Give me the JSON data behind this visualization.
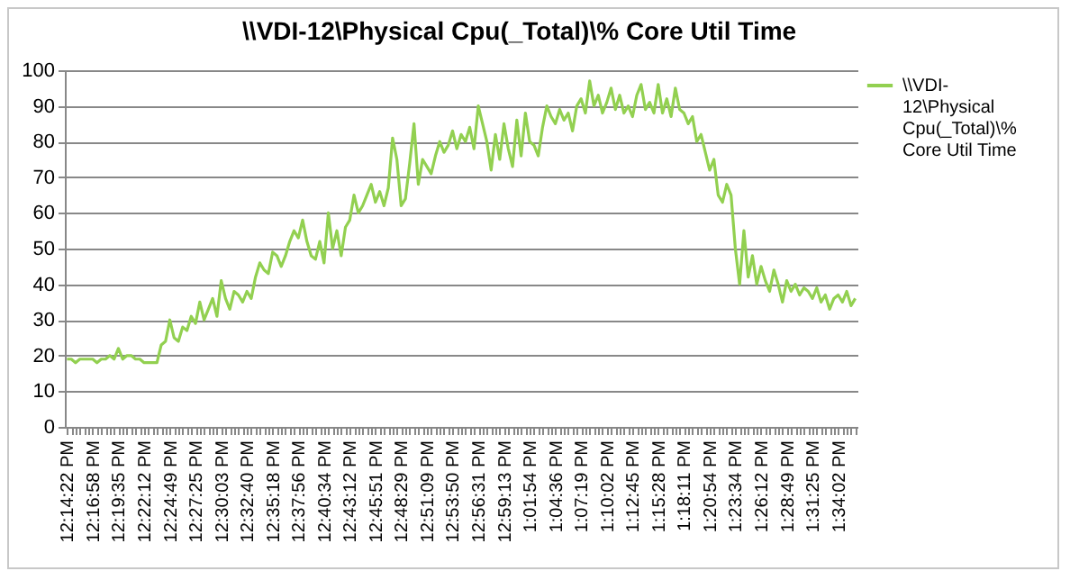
{
  "chart_data": {
    "type": "line",
    "title": "\\\\VDI-12\\Physical Cpu(_Total)\\% Core Util Time",
    "categories": [
      "12:14:22 PM",
      null,
      null,
      null,
      null,
      null,
      "12:16:58 PM",
      null,
      null,
      null,
      null,
      null,
      "12:19:35 PM",
      null,
      null,
      null,
      null,
      null,
      "12:22:12 PM",
      null,
      null,
      null,
      null,
      null,
      "12:24:49 PM",
      null,
      null,
      null,
      null,
      null,
      "12:27:25 PM",
      null,
      null,
      null,
      null,
      null,
      "12:30:03 PM",
      null,
      null,
      null,
      null,
      null,
      "12:32:40 PM",
      null,
      null,
      null,
      null,
      null,
      "12:35:18 PM",
      null,
      null,
      null,
      null,
      null,
      "12:37:56 PM",
      null,
      null,
      null,
      null,
      null,
      "12:40:34 PM",
      null,
      null,
      null,
      null,
      null,
      "12:43:12 PM",
      null,
      null,
      null,
      null,
      null,
      "12:45:51 PM",
      null,
      null,
      null,
      null,
      null,
      "12:48:29 PM",
      null,
      null,
      null,
      null,
      null,
      "12:51:09 PM",
      null,
      null,
      null,
      null,
      null,
      "12:53:50 PM",
      null,
      null,
      null,
      null,
      null,
      "12:56:31 PM",
      null,
      null,
      null,
      null,
      null,
      "12:59:13 PM",
      null,
      null,
      null,
      null,
      null,
      "1:01:54 PM",
      null,
      null,
      null,
      null,
      null,
      "1:04:36 PM",
      null,
      null,
      null,
      null,
      null,
      "1:07:19 PM",
      null,
      null,
      null,
      null,
      null,
      "1:10:02 PM",
      null,
      null,
      null,
      null,
      null,
      "1:12:45 PM",
      null,
      null,
      null,
      null,
      null,
      "1:15:28 PM",
      null,
      null,
      null,
      null,
      null,
      "1:18:11 PM",
      null,
      null,
      null,
      null,
      null,
      "1:20:54 PM",
      null,
      null,
      null,
      null,
      null,
      "1:23:34 PM",
      null,
      null,
      null,
      null,
      null,
      "1:26:12 PM",
      null,
      null,
      null,
      null,
      null,
      "1:28:49 PM",
      null,
      null,
      null,
      null,
      null,
      "1:31:25 PM",
      null,
      null,
      null,
      null,
      null,
      "1:34:02 PM",
      null,
      null,
      null,
      null
    ],
    "series": [
      {
        "name": "\\\\VDI-12\\Physical Cpu(_Total)\\% Core Util Time",
        "color": "#92d050",
        "values": [
          19,
          19,
          18,
          19,
          19,
          19,
          19,
          18,
          19,
          19,
          20,
          19,
          22,
          19,
          20,
          20,
          19,
          19,
          18,
          18,
          18,
          18,
          23,
          24,
          30,
          25,
          24,
          28,
          27,
          31,
          29,
          35,
          30,
          33,
          36,
          31,
          41,
          36,
          33,
          38,
          37,
          35,
          38,
          36,
          42,
          46,
          44,
          43,
          49,
          48,
          45,
          48,
          52,
          55,
          53,
          58,
          52,
          48,
          47,
          52,
          46,
          60,
          50,
          55,
          48,
          56,
          58,
          65,
          60,
          62,
          65,
          68,
          63,
          66,
          62,
          67,
          81,
          75,
          62,
          64,
          74,
          85,
          68,
          75,
          73,
          71,
          76,
          80,
          77,
          79,
          83,
          78,
          82,
          80,
          84,
          78,
          90,
          85,
          80,
          72,
          82,
          75,
          85,
          78,
          73,
          86,
          76,
          88,
          80,
          79,
          76,
          84,
          90,
          87,
          85,
          89,
          86,
          88,
          83,
          90,
          92,
          88,
          97,
          90,
          93,
          88,
          91,
          95,
          89,
          93,
          88,
          90,
          87,
          93,
          96,
          89,
          91,
          88,
          96,
          88,
          92,
          87,
          95,
          89,
          88,
          85,
          87,
          80,
          82,
          77,
          72,
          75,
          65,
          63,
          68,
          65,
          50,
          40,
          55,
          42,
          48,
          40,
          45,
          41,
          38,
          44,
          40,
          35,
          41,
          38,
          40,
          37,
          39,
          38,
          36,
          39,
          35,
          37,
          33,
          36,
          37,
          35,
          38,
          34,
          36
        ]
      }
    ],
    "ylim": [
      0,
      100
    ],
    "yticks": [
      0,
      10,
      20,
      30,
      40,
      50,
      60,
      70,
      80,
      90,
      100
    ],
    "grid": "y",
    "legend": "right"
  }
}
